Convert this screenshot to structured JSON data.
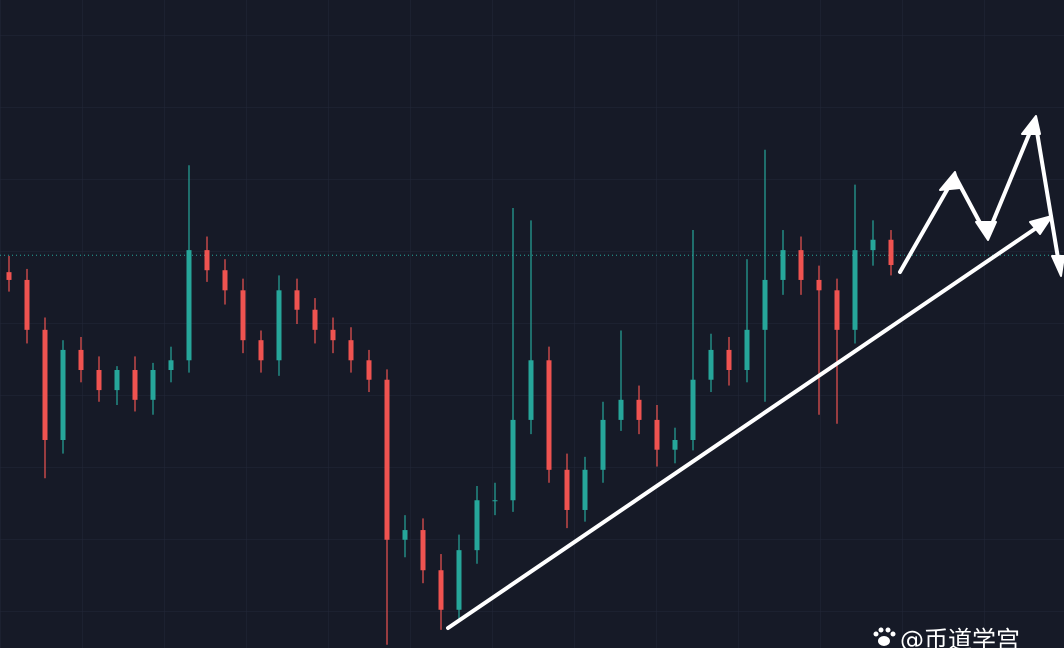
{
  "chart_data": {
    "type": "candlestick",
    "categories": [
      null,
      null,
      null,
      null,
      null,
      null,
      null,
      null,
      null,
      null,
      null,
      null,
      null,
      null,
      null,
      null,
      null,
      null,
      null,
      null,
      null,
      null,
      null,
      null,
      null,
      null,
      null,
      null,
      null,
      null,
      null,
      null,
      null,
      null,
      null,
      null,
      null,
      null,
      null,
      null,
      null,
      null,
      null,
      null,
      null,
      null,
      null,
      null,
      null,
      null
    ],
    "open": [
      58.0,
      56.8,
      49.1,
      32.1,
      46.0,
      42.9,
      39.8,
      42.9,
      38.3,
      42.9,
      44.4,
      61.4,
      58.3,
      55.2,
      47.5,
      44.4,
      55.2,
      52.2,
      49.1,
      47.5,
      44.4,
      41.4,
      16.7,
      18.2,
      12.0,
      5.9,
      15.1,
      22.8,
      22.8,
      35.2,
      44.4,
      27.5,
      21.3,
      27.5,
      35.2,
      38.3,
      35.2,
      30.6,
      32.1,
      41.4,
      46.0,
      42.9,
      49.1,
      56.8,
      61.4,
      56.8,
      55.2,
      49.1,
      61.4,
      63.0
    ],
    "high": [
      60.5,
      58.5,
      51.0,
      47.5,
      48.0,
      45.0,
      43.5,
      45.0,
      44.0,
      46.5,
      74.5,
      63.5,
      60.0,
      57.0,
      49.0,
      57.5,
      57.0,
      54.0,
      51.0,
      49.5,
      46.0,
      43.0,
      20.5,
      20.0,
      14.5,
      17.5,
      25.0,
      25.5,
      67.9,
      66.0,
      46.5,
      30.0,
      29.5,
      38.0,
      49.0,
      40.5,
      37.5,
      34.0,
      64.5,
      48.5,
      48.0,
      60.0,
      76.9,
      64.5,
      63.5,
      59.0,
      57.0,
      71.5,
      66.0,
      64.5
    ],
    "low": [
      55.0,
      47.0,
      26.2,
      30.0,
      41.0,
      38.0,
      37.5,
      36.5,
      36.0,
      41.0,
      42.5,
      56.5,
      53.0,
      45.5,
      42.5,
      42.0,
      50.0,
      47.0,
      45.5,
      42.5,
      39.5,
      0.5,
      14.0,
      10.0,
      2.8,
      4.5,
      13.0,
      20.5,
      21.0,
      33.0,
      25.5,
      18.5,
      19.5,
      25.5,
      33.5,
      33.0,
      28.0,
      28.5,
      30.5,
      39.5,
      40.5,
      41.0,
      38.0,
      54.5,
      54.5,
      36.0,
      34.6,
      47.0,
      59.0,
      57.5
    ],
    "close": [
      56.8,
      49.1,
      32.1,
      46.0,
      42.9,
      39.8,
      42.9,
      38.3,
      42.9,
      44.4,
      61.4,
      58.3,
      55.2,
      47.5,
      44.4,
      55.2,
      52.2,
      49.1,
      47.5,
      44.4,
      41.4,
      16.7,
      18.2,
      12.0,
      5.9,
      15.1,
      22.8,
      22.8,
      35.2,
      44.4,
      27.5,
      21.3,
      27.5,
      35.2,
      38.3,
      35.2,
      30.6,
      32.1,
      41.4,
      46.0,
      42.9,
      49.1,
      56.8,
      61.4,
      56.8,
      55.2,
      49.1,
      61.4,
      63.0,
      59.1
    ],
    "up_color": "#26a69a",
    "down_color": "#ef5350",
    "ylim": [
      0,
      100
    ],
    "price_line": 60.6
  },
  "watermark": "@币道学宫"
}
